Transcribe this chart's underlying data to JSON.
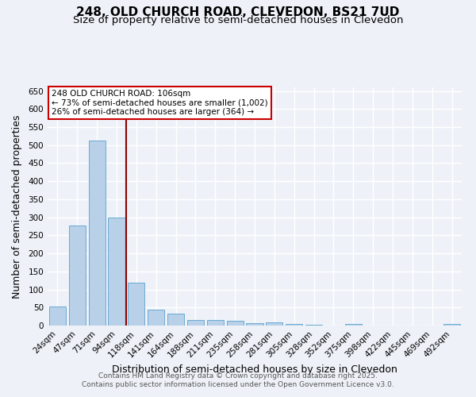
{
  "title": "248, OLD CHURCH ROAD, CLEVEDON, BS21 7UD",
  "subtitle": "Size of property relative to semi-detached houses in Clevedon",
  "xlabel": "Distribution of semi-detached houses by size in Clevedon",
  "ylabel": "Number of semi-detached properties",
  "categories": [
    "24sqm",
    "47sqm",
    "71sqm",
    "94sqm",
    "118sqm",
    "141sqm",
    "164sqm",
    "188sqm",
    "211sqm",
    "235sqm",
    "258sqm",
    "281sqm",
    "305sqm",
    "328sqm",
    "352sqm",
    "375sqm",
    "398sqm",
    "422sqm",
    "445sqm",
    "469sqm",
    "492sqm"
  ],
  "values": [
    52,
    278,
    513,
    300,
    118,
    45,
    32,
    16,
    15,
    13,
    7,
    8,
    5,
    3,
    0,
    4,
    0,
    0,
    0,
    0,
    5
  ],
  "bar_color": "#b8d0e8",
  "bar_edge_color": "#6aaad4",
  "vline_color": "#8b0000",
  "annotation_text": "248 OLD CHURCH ROAD: 106sqm\n← 73% of semi-detached houses are smaller (1,002)\n26% of semi-detached houses are larger (364) →",
  "annotation_box_facecolor": "#ffffff",
  "annotation_box_edgecolor": "#cc0000",
  "ylim": [
    0,
    660
  ],
  "yticks": [
    0,
    50,
    100,
    150,
    200,
    250,
    300,
    350,
    400,
    450,
    500,
    550,
    600,
    650
  ],
  "footnote1": "Contains HM Land Registry data © Crown copyright and database right 2025.",
  "footnote2": "Contains public sector information licensed under the Open Government Licence v3.0.",
  "bg_color": "#eef2f8",
  "grid_color": "#ffffff",
  "title_fontsize": 11,
  "subtitle_fontsize": 9.5,
  "tick_fontsize": 7.5,
  "label_fontsize": 9,
  "footnote_fontsize": 6.5
}
